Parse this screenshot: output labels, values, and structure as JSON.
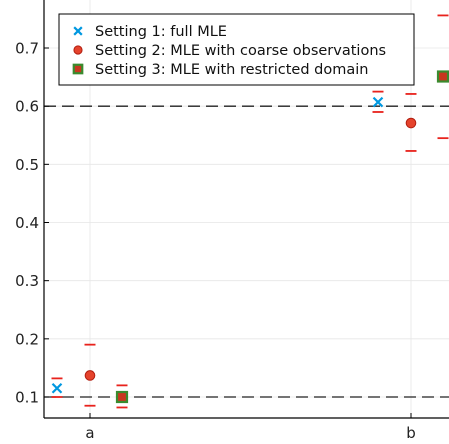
{
  "chart_data": {
    "type": "scatter",
    "title": "",
    "xlabel": "",
    "ylabel": "",
    "categories": [
      "a",
      "b"
    ],
    "ylim": [
      0.05,
      0.8
    ],
    "yticks": [
      "0.1",
      "0.2",
      "0.3",
      "0.4",
      "0.5",
      "0.6",
      "0.7"
    ],
    "grid": true,
    "legend_position": "top-left",
    "reference_lines": [
      0.1,
      0.6
    ],
    "series": [
      {
        "name": "Setting 1: full MLE",
        "marker": "x",
        "color": "#0098e0",
        "values": [
          0.115,
          0.607
        ],
        "intervals": [
          [
            0.1,
            0.132
          ],
          [
            0.59,
            0.625
          ]
        ]
      },
      {
        "name": "Setting 2: MLE with coarse observations",
        "marker": "circle",
        "color": "#e5432c",
        "values": [
          0.137,
          0.571
        ],
        "intervals": [
          [
            0.085,
            0.19
          ],
          [
            0.523,
            0.621
          ]
        ]
      },
      {
        "name": "Setting 3: MLE with restricted domain",
        "marker": "square",
        "color": "#3a8b2e",
        "values": [
          0.1,
          0.651
        ],
        "intervals": [
          [
            0.082,
            0.12
          ],
          [
            0.545,
            0.756
          ]
        ]
      }
    ]
  }
}
